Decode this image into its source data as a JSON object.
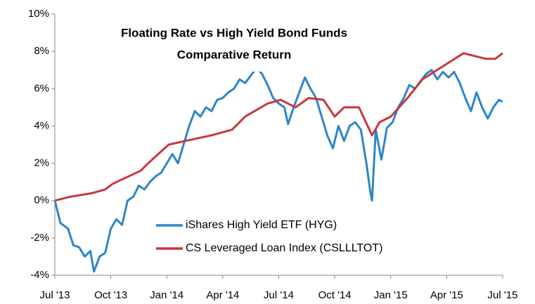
{
  "chart_data": {
    "type": "line",
    "title": "Floating Rate vs High Yield Bond Funds",
    "subtitle": "Comparative Return",
    "xlim": [
      0,
      24
    ],
    "xticks": [
      {
        "value": 0,
        "label": "Jul '13"
      },
      {
        "value": 3,
        "label": "Oct '13"
      },
      {
        "value": 6,
        "label": "Jan '14"
      },
      {
        "value": 9,
        "label": "Apr '14"
      },
      {
        "value": 12,
        "label": "Jul '14"
      },
      {
        "value": 15,
        "label": "Oct '14"
      },
      {
        "value": 18,
        "label": "Jan '15"
      },
      {
        "value": 21,
        "label": "Apr '15"
      },
      {
        "value": 24,
        "label": "Jul '15"
      }
    ],
    "ylim": [
      -4,
      10
    ],
    "yticks": [
      {
        "value": -4,
        "label": "-4%"
      },
      {
        "value": -2,
        "label": "-2%"
      },
      {
        "value": 0,
        "label": "0%"
      },
      {
        "value": 2,
        "label": "2%"
      },
      {
        "value": 4,
        "label": "4%"
      },
      {
        "value": 6,
        "label": "6%"
      },
      {
        "value": 8,
        "label": "8%"
      },
      {
        "value": 10,
        "label": "10%"
      }
    ],
    "grid": false,
    "legend": "bottom",
    "series": [
      {
        "name": "iShares High Yield ETF (HYG)",
        "color": "#2e86c8",
        "x": [
          0,
          0.3,
          0.7,
          1.0,
          1.3,
          1.6,
          1.9,
          2.1,
          2.4,
          2.7,
          3.0,
          3.3,
          3.6,
          3.9,
          4.2,
          4.5,
          4.8,
          5.1,
          5.4,
          5.7,
          6.0,
          6.3,
          6.6,
          6.9,
          7.2,
          7.5,
          7.8,
          8.1,
          8.4,
          8.7,
          9.0,
          9.3,
          9.6,
          9.9,
          10.2,
          10.5,
          10.8,
          11.1,
          11.4,
          11.7,
          12.0,
          12.3,
          12.5,
          12.8,
          13.1,
          13.4,
          13.7,
          14.0,
          14.3,
          14.6,
          14.9,
          15.2,
          15.5,
          15.8,
          16.1,
          16.4,
          16.7,
          16.9,
          17.0,
          17.2,
          17.5,
          17.8,
          18.1,
          18.4,
          18.7,
          19.0,
          19.3,
          19.6,
          19.9,
          20.2,
          20.5,
          20.8,
          21.1,
          21.4,
          21.7,
          22.0,
          22.3,
          22.6,
          22.9,
          23.2,
          23.5,
          23.8,
          24.0
        ],
        "values": [
          0,
          -1.2,
          -1.5,
          -2.4,
          -2.5,
          -3.0,
          -2.7,
          -3.8,
          -3.0,
          -2.8,
          -1.5,
          -1.0,
          -1.3,
          0.0,
          0.2,
          0.8,
          0.6,
          1.0,
          1.3,
          1.5,
          2.0,
          2.5,
          2.0,
          3.0,
          4.0,
          4.8,
          4.5,
          5.0,
          4.8,
          5.4,
          5.5,
          5.8,
          6.0,
          6.5,
          6.3,
          6.7,
          7.1,
          6.8,
          6.2,
          5.5,
          5.2,
          5.0,
          4.1,
          5.0,
          5.8,
          6.6,
          6.0,
          5.5,
          4.5,
          3.5,
          2.8,
          4.0,
          3.2,
          4.0,
          4.2,
          3.8,
          2.0,
          0.5,
          0.0,
          3.8,
          2.2,
          3.9,
          4.2,
          5.0,
          5.5,
          6.2,
          6.0,
          6.4,
          6.8,
          7.0,
          6.5,
          6.9,
          6.6,
          6.9,
          6.3,
          5.5,
          4.8,
          5.8,
          5.0,
          4.4,
          5.0,
          5.4,
          5.3
        ]
      },
      {
        "name": "CS Leveraged Loan Index (CSLLLTOT)",
        "color": "#c8373d",
        "x": [
          0,
          0.8,
          2.0,
          2.7,
          3.1,
          4.6,
          5.0,
          6.1,
          7.0,
          8.4,
          9.5,
          10.2,
          11.4,
          12.1,
          12.9,
          13.6,
          14.4,
          15.0,
          15.5,
          16.3,
          17.0,
          17.4,
          18.0,
          18.9,
          19.7,
          20.8,
          21.9,
          23.1,
          23.6,
          24.0
        ],
        "values": [
          0,
          0.2,
          0.4,
          0.6,
          0.9,
          1.6,
          2.0,
          3.0,
          3.2,
          3.5,
          3.8,
          4.5,
          5.2,
          5.4,
          5.0,
          5.5,
          5.4,
          4.5,
          5.0,
          5.0,
          3.5,
          4.2,
          4.5,
          5.5,
          6.5,
          7.2,
          7.9,
          7.6,
          7.6,
          7.9
        ]
      }
    ]
  }
}
